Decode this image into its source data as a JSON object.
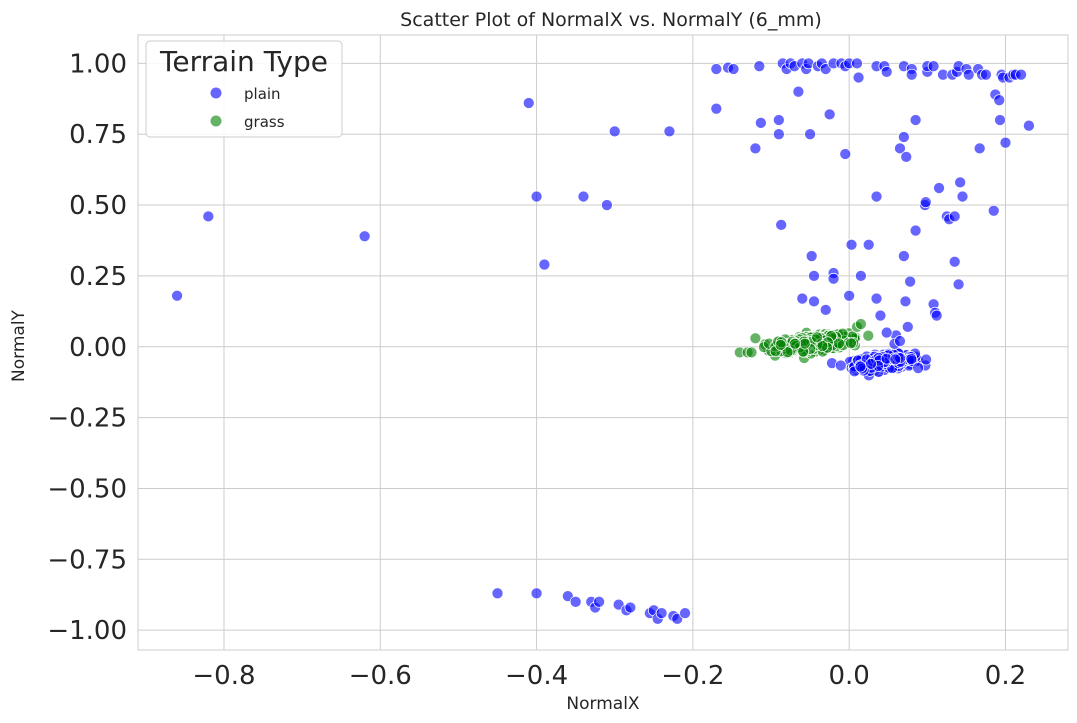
{
  "chart_data": {
    "type": "scatter",
    "title": "Scatter Plot of NormalX vs. NormalY (6_mm)",
    "xlabel": "NormalX",
    "ylabel": "NormalY",
    "xlim": [
      -0.91,
      0.28
    ],
    "ylim": [
      -1.07,
      1.1
    ],
    "xticks": [
      -0.8,
      -0.6,
      -0.4,
      -0.2,
      0.0,
      0.2
    ],
    "xtick_labels": [
      "−0.8",
      "−0.6",
      "−0.4",
      "−0.2",
      "0.0",
      "0.2"
    ],
    "yticks": [
      1.0,
      0.75,
      0.5,
      0.25,
      0.0,
      -0.25,
      -0.5,
      -0.75,
      -1.0
    ],
    "ytick_labels": [
      "1.00",
      "0.75",
      "0.50",
      "0.25",
      "0.00",
      "−0.25",
      "−0.50",
      "−0.75",
      "−1.00"
    ],
    "grid": true,
    "legend": {
      "title": "Terrain Type",
      "placement": "top-left"
    },
    "series": [
      {
        "name": "plain",
        "color": "#0000ff",
        "points": [
          [
            -0.86,
            0.18
          ],
          [
            -0.82,
            0.46
          ],
          [
            -0.62,
            0.39
          ],
          [
            -0.41,
            0.86
          ],
          [
            -0.4,
            0.53
          ],
          [
            -0.39,
            0.29
          ],
          [
            -0.34,
            0.53
          ],
          [
            -0.31,
            0.5
          ],
          [
            -0.3,
            0.76
          ],
          [
            -0.23,
            0.76
          ],
          [
            -0.17,
            0.84
          ],
          [
            -0.17,
            0.98
          ],
          [
            -0.155,
            0.985
          ],
          [
            -0.148,
            0.98
          ],
          [
            -0.12,
            0.7
          ],
          [
            -0.113,
            0.79
          ],
          [
            -0.115,
            0.99
          ],
          [
            -0.09,
            0.8
          ],
          [
            -0.09,
            0.75
          ],
          [
            -0.087,
            0.43
          ],
          [
            -0.085,
            1.0
          ],
          [
            -0.08,
            0.98
          ],
          [
            -0.075,
            1.0
          ],
          [
            -0.07,
            0.99
          ],
          [
            -0.065,
            0.9
          ],
          [
            -0.06,
            1.0
          ],
          [
            -0.06,
            0.17
          ],
          [
            -0.055,
            0.98
          ],
          [
            -0.052,
            1.0
          ],
          [
            -0.05,
            0.75
          ],
          [
            -0.048,
            0.32
          ],
          [
            -0.045,
            0.25
          ],
          [
            -0.045,
            0.16
          ],
          [
            -0.04,
            0.99
          ],
          [
            -0.035,
            1.0
          ],
          [
            -0.03,
            0.98
          ],
          [
            -0.03,
            0.13
          ],
          [
            -0.025,
            0.82
          ],
          [
            -0.02,
            0.26
          ],
          [
            -0.02,
            0.24
          ],
          [
            -0.02,
            1.0
          ],
          [
            -0.01,
            1.0
          ],
          [
            -0.005,
            0.99
          ],
          [
            -0.005,
            0.68
          ],
          [
            0.0,
            1.0
          ],
          [
            0.0,
            0.18
          ],
          [
            0.003,
            0.36
          ],
          [
            0.01,
            1.0
          ],
          [
            0.012,
            0.95
          ],
          [
            0.015,
            0.25
          ],
          [
            0.025,
            0.36
          ],
          [
            0.035,
            0.99
          ],
          [
            0.035,
            0.53
          ],
          [
            0.035,
            0.17
          ],
          [
            0.04,
            0.11
          ],
          [
            0.045,
            0.99
          ],
          [
            0.048,
            0.97
          ],
          [
            0.06,
            0.04
          ],
          [
            0.065,
            0.7
          ],
          [
            0.07,
            0.74
          ],
          [
            0.07,
            0.99
          ],
          [
            0.07,
            0.32
          ],
          [
            0.072,
            0.16
          ],
          [
            0.073,
            0.67
          ],
          [
            0.075,
            0.07
          ],
          [
            0.078,
            0.23
          ],
          [
            0.08,
            0.98
          ],
          [
            0.08,
            0.96
          ],
          [
            0.085,
            0.8
          ],
          [
            0.085,
            0.41
          ],
          [
            0.097,
            0.5
          ],
          [
            0.098,
            0.51
          ],
          [
            0.1,
            0.97
          ],
          [
            0.1,
            0.99
          ],
          [
            0.108,
            0.99
          ],
          [
            0.108,
            0.15
          ],
          [
            0.11,
            0.12
          ],
          [
            0.112,
            0.11
          ],
          [
            0.115,
            0.56
          ],
          [
            0.12,
            0.96
          ],
          [
            0.125,
            0.46
          ],
          [
            0.128,
            0.45
          ],
          [
            0.132,
            0.96
          ],
          [
            0.135,
            0.46
          ],
          [
            0.135,
            0.3
          ],
          [
            0.138,
            0.97
          ],
          [
            0.14,
            0.99
          ],
          [
            0.14,
            0.22
          ],
          [
            0.142,
            0.58
          ],
          [
            0.145,
            0.53
          ],
          [
            0.15,
            0.98
          ],
          [
            0.153,
            0.96
          ],
          [
            0.165,
            0.98
          ],
          [
            0.167,
            0.7
          ],
          [
            0.17,
            0.96
          ],
          [
            0.175,
            0.96
          ],
          [
            0.185,
            0.48
          ],
          [
            0.187,
            0.89
          ],
          [
            0.192,
            0.87
          ],
          [
            0.193,
            0.8
          ],
          [
            0.195,
            0.96
          ],
          [
            0.197,
            0.95
          ],
          [
            0.2,
            0.72
          ],
          [
            0.205,
            0.95
          ],
          [
            0.21,
            0.96
          ],
          [
            0.213,
            0.96
          ],
          [
            0.22,
            0.96
          ],
          [
            0.23,
            0.78
          ],
          [
            0.048,
            0.05
          ],
          [
            0.058,
            0.01
          ],
          [
            0.065,
            0.02
          ],
          [
            -0.45,
            -0.87
          ],
          [
            -0.4,
            -0.87
          ],
          [
            -0.36,
            -0.88
          ],
          [
            -0.35,
            -0.9
          ],
          [
            -0.33,
            -0.9
          ],
          [
            -0.325,
            -0.92
          ],
          [
            -0.32,
            -0.9
          ],
          [
            -0.295,
            -0.91
          ],
          [
            -0.285,
            -0.93
          ],
          [
            -0.28,
            -0.92
          ],
          [
            -0.255,
            -0.94
          ],
          [
            -0.25,
            -0.93
          ],
          [
            -0.245,
            -0.96
          ],
          [
            -0.24,
            -0.94
          ],
          [
            -0.225,
            -0.95
          ],
          [
            -0.22,
            -0.96
          ],
          [
            -0.21,
            -0.94
          ]
        ],
        "cluster": {
          "center": [
            0.045,
            -0.055
          ],
          "spread": [
            0.035,
            0.022
          ],
          "count": 340
        }
      },
      {
        "name": "grass",
        "color": "#008000",
        "points": [
          [
            -0.14,
            -0.02
          ],
          [
            -0.13,
            -0.02
          ],
          [
            -0.12,
            0.03
          ],
          [
            -0.125,
            -0.02
          ],
          [
            0.01,
            0.07
          ],
          [
            0.015,
            0.08
          ]
        ],
        "cluster": {
          "center": [
            -0.045,
            0.012
          ],
          "spread": [
            0.04,
            0.022
          ],
          "count": 620
        }
      }
    ]
  }
}
